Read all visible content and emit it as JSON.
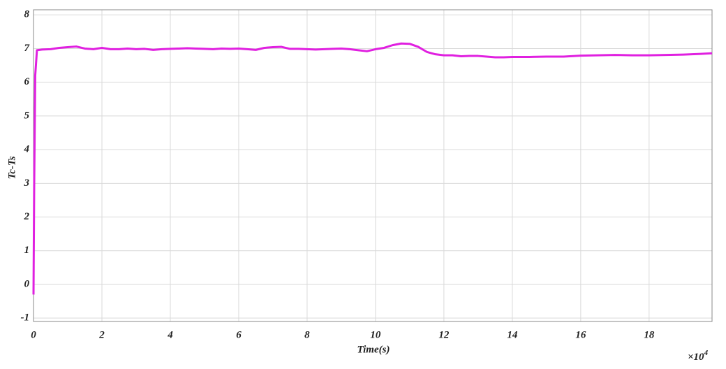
{
  "chart_data": {
    "type": "line",
    "xlabel": "Time(s)",
    "ylabel": "Tc-Ts",
    "x_exponent_base": "×10",
    "x_exponent_power": "4",
    "xlim": [
      0,
      19.84
    ],
    "ylim": [
      -1.1,
      8.15
    ],
    "xticks": [
      0,
      2,
      4,
      6,
      8,
      10,
      12,
      14,
      16,
      18
    ],
    "yticks": [
      -1,
      0,
      1,
      2,
      3,
      4,
      5,
      6,
      7,
      8
    ],
    "grid": true,
    "series": [
      {
        "color": "#e020e0",
        "x": [
          0,
          0.02,
          0.05,
          0.1,
          0.25,
          0.5,
          0.75,
          1.0,
          1.25,
          1.5,
          1.75,
          2.0,
          2.25,
          2.5,
          2.75,
          3.0,
          3.25,
          3.5,
          3.75,
          4.0,
          4.25,
          4.5,
          4.75,
          5.0,
          5.25,
          5.5,
          5.75,
          6.0,
          6.25,
          6.5,
          6.75,
          7.0,
          7.25,
          7.5,
          7.75,
          8.0,
          8.25,
          8.5,
          8.75,
          9.0,
          9.25,
          9.5,
          9.75,
          10.0,
          10.25,
          10.5,
          10.75,
          11.0,
          11.25,
          11.5,
          11.75,
          12.0,
          12.25,
          12.5,
          12.75,
          13.0,
          13.25,
          13.5,
          13.75,
          14.0,
          14.5,
          15.0,
          15.5,
          16.0,
          16.5,
          17.0,
          17.5,
          18.0,
          18.5,
          19.0,
          19.5,
          19.84
        ],
        "values": [
          -0.3,
          3.0,
          6.2,
          6.95,
          6.97,
          6.98,
          7.02,
          7.04,
          7.06,
          7.0,
          6.98,
          7.02,
          6.98,
          6.98,
          7.0,
          6.98,
          6.99,
          6.96,
          6.98,
          6.99,
          7.0,
          7.01,
          7.0,
          6.99,
          6.98,
          7.0,
          6.99,
          7.0,
          6.98,
          6.96,
          7.02,
          7.04,
          7.05,
          6.99,
          6.99,
          6.98,
          6.97,
          6.98,
          6.99,
          7.0,
          6.98,
          6.95,
          6.92,
          6.98,
          7.02,
          7.1,
          7.15,
          7.14,
          7.05,
          6.9,
          6.83,
          6.8,
          6.8,
          6.77,
          6.78,
          6.78,
          6.76,
          6.74,
          6.74,
          6.75,
          6.75,
          6.76,
          6.76,
          6.79,
          6.8,
          6.81,
          6.8,
          6.8,
          6.81,
          6.82,
          6.84,
          6.86
        ]
      }
    ]
  }
}
